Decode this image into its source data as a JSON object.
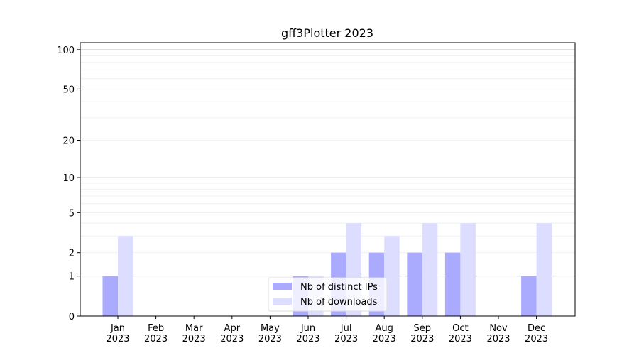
{
  "chart_data": {
    "type": "bar",
    "title": "gff3Plotter 2023",
    "xlabel": "",
    "ylabel": "",
    "yscale": "log10(1+y)",
    "ylim": [
      0,
      113
    ],
    "yticks": [
      0,
      1,
      2,
      5,
      10,
      20,
      50,
      100
    ],
    "grid": true,
    "legend": "lower-center",
    "categories": [
      "Jan\n2023",
      "Feb\n2023",
      "Mar\n2023",
      "Apr\n2023",
      "May\n2023",
      "Jun\n2023",
      "Jul\n2023",
      "Aug\n2023",
      "Sep\n2023",
      "Oct\n2023",
      "Nov\n2023",
      "Dec\n2023"
    ],
    "series": [
      {
        "name": "Nb of distinct IPs",
        "color": "#aaaaff",
        "values": [
          1,
          0,
          0,
          0,
          0,
          1,
          2,
          2,
          2,
          2,
          0,
          1
        ]
      },
      {
        "name": "Nb of downloads",
        "color": "#ddddff",
        "values": [
          3,
          0,
          0,
          0,
          0,
          1,
          4,
          3,
          4,
          4,
          0,
          4
        ]
      }
    ]
  }
}
